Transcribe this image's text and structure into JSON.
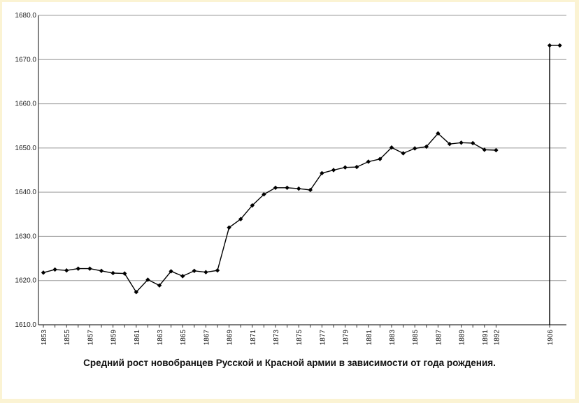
{
  "chart_data": {
    "type": "line",
    "title": "Средний рост новобранцев Русской и Красной армии в зависимости от года рождения.",
    "xlabel": "",
    "ylabel": "",
    "ylim": [
      1610,
      1680
    ],
    "y_ticks": [
      "1610.0",
      "1620.0",
      "1630.0",
      "1640.0",
      "1650.0",
      "1660.0",
      "1670.0",
      "1680.0"
    ],
    "x_ticks": [
      "1853",
      "1855",
      "1857",
      "1859",
      "1861",
      "1863",
      "1865",
      "1867",
      "1869",
      "1871",
      "1873",
      "1875",
      "1877",
      "1879",
      "1881",
      "1883",
      "1885",
      "1887",
      "1889",
      "1891",
      "1892",
      "1906"
    ],
    "grid": true,
    "legend": "none",
    "line_color": "#000000",
    "series": [
      {
        "x": [
          1853,
          1854,
          1855,
          1856,
          1857,
          1858,
          1859,
          1860,
          1861,
          1862,
          1863,
          1864,
          1865,
          1866,
          1867,
          1868,
          1869,
          1870,
          1871,
          1872,
          1873,
          1874,
          1875,
          1876,
          1877,
          1878,
          1879,
          1880,
          1881,
          1882,
          1883,
          1884,
          1885,
          1886,
          1887,
          1888,
          1889,
          1890,
          1891,
          1892
        ],
        "values": [
          1621.8,
          1622.5,
          1622.3,
          1622.7,
          1622.7,
          1622.2,
          1621.7,
          1621.6,
          1617.4,
          1620.2,
          1618.9,
          1622.1,
          1621.0,
          1622.2,
          1621.9,
          1622.3,
          1632.0,
          1633.9,
          1637.0,
          1639.5,
          1641.0,
          1641.0,
          1640.8,
          1640.5,
          1644.3,
          1645.0,
          1645.6,
          1645.7,
          1646.9,
          1647.5,
          1650.1,
          1648.8,
          1649.9,
          1650.3,
          1653.3,
          1650.9,
          1651.2,
          1651.1,
          1649.6,
          1649.5
        ]
      },
      {
        "x": [
          1906,
          1907
        ],
        "values": [
          1673.2,
          1673.2
        ]
      }
    ]
  }
}
